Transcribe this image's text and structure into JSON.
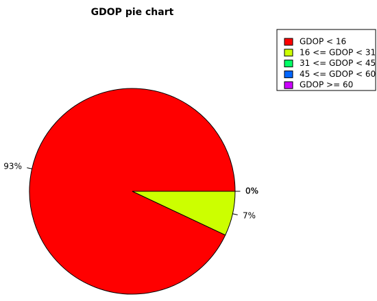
{
  "chart_data": {
    "type": "pie",
    "title": "GDOP pie chart",
    "categories": [
      "GDOP < 16",
      "16 <= GDOP < 31",
      "31 <= GDOP < 45",
      "45 <= GDOP < 60",
      "GDOP >= 60"
    ],
    "values": [
      93,
      7,
      0,
      0,
      0
    ],
    "value_labels": [
      "93%",
      "7%",
      "0%",
      "0%",
      "0%"
    ],
    "colors": [
      "#ff0000",
      "#ccff00",
      "#00ff66",
      "#0066ff",
      "#cc00ff"
    ],
    "legend": "topright"
  }
}
